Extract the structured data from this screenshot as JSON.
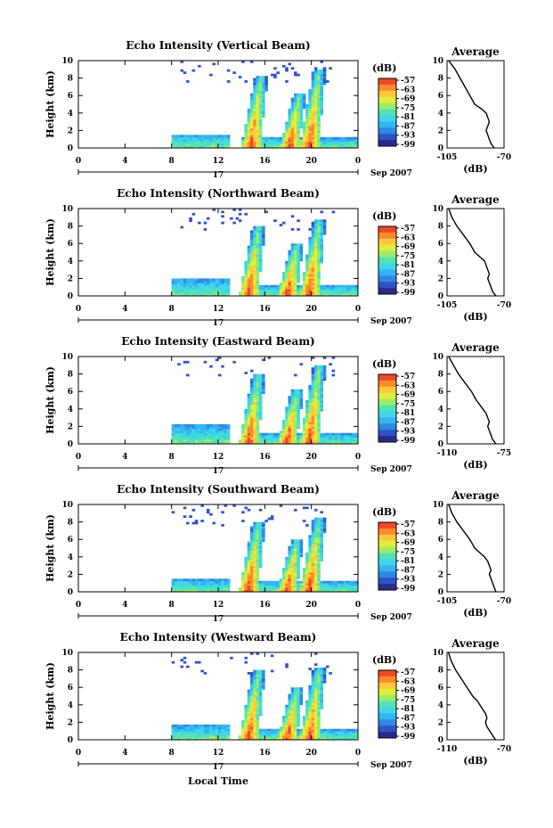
{
  "colors": {
    "colorbar": [
      "#2b2b8a",
      "#2f52c8",
      "#2f88e6",
      "#34b4f0",
      "#3ed7e6",
      "#52e3b4",
      "#9bec6a",
      "#e2ee3c",
      "#ffc83a",
      "#ff8a2a",
      "#f0482a"
    ]
  },
  "shared": {
    "ylabel": "Height (km)",
    "yticks": [
      "0",
      "2",
      "4",
      "6",
      "8",
      "10"
    ],
    "xticks": [
      "0",
      "4",
      "8",
      "12",
      "16",
      "20",
      "0"
    ],
    "date_day": "17",
    "date_month": "Sep 2007",
    "cbar_unit": "(dB)",
    "cbar_ticks": [
      "-57",
      "-63",
      "-69",
      "-75",
      "-81",
      "-87",
      "-93",
      "-99"
    ],
    "avg_title": "Average",
    "avg_unit": "(dB)",
    "avg_yticks": [
      "0",
      "2",
      "4",
      "6",
      "8",
      "10"
    ],
    "xlabel": "Local Time"
  },
  "chart_data": [
    {
      "type": "heatmap",
      "title": "Echo Intensity (Vertical Beam)",
      "x_range_hours": [
        0,
        24
      ],
      "y_range_km": [
        0,
        10
      ],
      "value_range_dB": [
        -99,
        -57
      ],
      "features": [
        {
          "kind": "low-layer",
          "start_h": 8,
          "end_h": 13,
          "top_km": 1.6
        },
        {
          "kind": "low-layer",
          "start_h": 14,
          "end_h": 24,
          "top_km": 1.2
        },
        {
          "kind": "convective-core",
          "center_h": 15.2,
          "top_km": 8.2
        },
        {
          "kind": "convective-core",
          "center_h": 18.5,
          "top_km": 6.2
        },
        {
          "kind": "convective-core",
          "center_h": 20.2,
          "top_km": 9.0
        }
      ],
      "average": {
        "xlim": [
          -105,
          -70
        ],
        "xticks": [
          "-105",
          "-70"
        ],
        "profile": [
          [
            -76,
            0
          ],
          [
            -78,
            0.5
          ],
          [
            -79,
            1
          ],
          [
            -80,
            1.5
          ],
          [
            -81,
            2
          ],
          [
            -80,
            2.5
          ],
          [
            -79,
            3
          ],
          [
            -80,
            3.5
          ],
          [
            -81,
            4
          ],
          [
            -84,
            4.5
          ],
          [
            -88,
            5
          ],
          [
            -91,
            6
          ],
          [
            -94,
            7
          ],
          [
            -97,
            8
          ],
          [
            -100,
            9
          ],
          [
            -104,
            10
          ]
        ]
      }
    },
    {
      "type": "heatmap",
      "title": "Echo Intensity (Northward Beam)",
      "x_range_hours": [
        0,
        24
      ],
      "y_range_km": [
        0,
        10
      ],
      "value_range_dB": [
        -99,
        -57
      ],
      "features": [
        {
          "kind": "low-layer",
          "start_h": 8,
          "end_h": 13,
          "top_km": 2.0
        },
        {
          "kind": "low-layer",
          "start_h": 14,
          "end_h": 24,
          "top_km": 1.3
        },
        {
          "kind": "convective-core",
          "center_h": 15.0,
          "top_km": 8.0
        },
        {
          "kind": "convective-core",
          "center_h": 18.3,
          "top_km": 6.0
        },
        {
          "kind": "convective-core",
          "center_h": 20.2,
          "top_km": 8.8
        }
      ],
      "average": {
        "xlim": [
          -105,
          -70
        ],
        "xticks": [
          "-105",
          "-70"
        ],
        "profile": [
          [
            -75,
            0
          ],
          [
            -77,
            0.5
          ],
          [
            -78,
            1
          ],
          [
            -79,
            1.5
          ],
          [
            -80,
            2
          ],
          [
            -79,
            2.5
          ],
          [
            -80,
            3
          ],
          [
            -81,
            3.5
          ],
          [
            -82,
            4
          ],
          [
            -85,
            4.5
          ],
          [
            -88,
            5
          ],
          [
            -91,
            6
          ],
          [
            -95,
            7
          ],
          [
            -99,
            8
          ],
          [
            -102,
            9
          ],
          [
            -104,
            10
          ]
        ]
      }
    },
    {
      "type": "heatmap",
      "title": "Echo Intensity (Eastward Beam)",
      "x_range_hours": [
        0,
        24
      ],
      "y_range_km": [
        0,
        10
      ],
      "value_range_dB": [
        -99,
        -57
      ],
      "features": [
        {
          "kind": "low-layer",
          "start_h": 8,
          "end_h": 13,
          "top_km": 2.2
        },
        {
          "kind": "low-layer",
          "start_h": 14,
          "end_h": 24,
          "top_km": 1.3
        },
        {
          "kind": "convective-core",
          "center_h": 15.0,
          "top_km": 8.0
        },
        {
          "kind": "convective-core",
          "center_h": 18.3,
          "top_km": 6.2
        },
        {
          "kind": "convective-core",
          "center_h": 20.2,
          "top_km": 9.0
        }
      ],
      "average": {
        "xlim": [
          -110,
          -75
        ],
        "xticks": [
          "-110",
          "-75"
        ],
        "profile": [
          [
            -80,
            0
          ],
          [
            -82,
            0.5
          ],
          [
            -83,
            1
          ],
          [
            -84,
            1.5
          ],
          [
            -85,
            2
          ],
          [
            -84,
            2.5
          ],
          [
            -85,
            3
          ],
          [
            -86,
            3.5
          ],
          [
            -88,
            4
          ],
          [
            -90,
            4.5
          ],
          [
            -92,
            5
          ],
          [
            -95,
            6
          ],
          [
            -99,
            7
          ],
          [
            -103,
            8
          ],
          [
            -106,
            9
          ],
          [
            -109,
            10
          ]
        ]
      }
    },
    {
      "type": "heatmap",
      "title": "Echo Intensity (Southward Beam)",
      "x_range_hours": [
        0,
        24
      ],
      "y_range_km": [
        0,
        10
      ],
      "value_range_dB": [
        -99,
        -57
      ],
      "features": [
        {
          "kind": "low-layer",
          "start_h": 8,
          "end_h": 13,
          "top_km": 1.5
        },
        {
          "kind": "low-layer",
          "start_h": 14,
          "end_h": 24,
          "top_km": 1.3
        },
        {
          "kind": "convective-core",
          "center_h": 15.0,
          "top_km": 8.0
        },
        {
          "kind": "convective-core",
          "center_h": 18.3,
          "top_km": 6.0
        },
        {
          "kind": "convective-core",
          "center_h": 20.2,
          "top_km": 8.5
        }
      ],
      "average": {
        "xlim": [
          -105,
          -70
        ],
        "xticks": [
          "-105",
          "-70"
        ],
        "profile": [
          [
            -75,
            0
          ],
          [
            -76,
            0.5
          ],
          [
            -77,
            1
          ],
          [
            -78,
            1.5
          ],
          [
            -79,
            2
          ],
          [
            -78,
            2.5
          ],
          [
            -79,
            3
          ],
          [
            -80,
            3.5
          ],
          [
            -82,
            4
          ],
          [
            -85,
            4.5
          ],
          [
            -88,
            5
          ],
          [
            -91,
            6
          ],
          [
            -95,
            7
          ],
          [
            -99,
            8
          ],
          [
            -102,
            9
          ],
          [
            -104,
            10
          ]
        ]
      }
    },
    {
      "type": "heatmap",
      "title": "Echo Intensity (Westward Beam)",
      "x_range_hours": [
        0,
        24
      ],
      "y_range_km": [
        0,
        10
      ],
      "value_range_dB": [
        -99,
        -57
      ],
      "features": [
        {
          "kind": "low-layer",
          "start_h": 8,
          "end_h": 13,
          "top_km": 1.8
        },
        {
          "kind": "low-layer",
          "start_h": 14,
          "end_h": 24,
          "top_km": 1.3
        },
        {
          "kind": "convective-core",
          "center_h": 15.0,
          "top_km": 8.0
        },
        {
          "kind": "convective-core",
          "center_h": 18.3,
          "top_km": 6.0
        },
        {
          "kind": "convective-core",
          "center_h": 20.2,
          "top_km": 8.2
        }
      ],
      "average": {
        "xlim": [
          -110,
          -70
        ],
        "xticks": [
          "-110",
          "-70"
        ],
        "profile": [
          [
            -76,
            0
          ],
          [
            -78,
            0.5
          ],
          [
            -80,
            1
          ],
          [
            -82,
            1.5
          ],
          [
            -83,
            2
          ],
          [
            -82,
            2.5
          ],
          [
            -83,
            3
          ],
          [
            -85,
            3.5
          ],
          [
            -87,
            4
          ],
          [
            -89,
            4.5
          ],
          [
            -92,
            5
          ],
          [
            -96,
            6
          ],
          [
            -100,
            7
          ],
          [
            -104,
            8
          ],
          [
            -107,
            9
          ],
          [
            -109,
            10
          ]
        ]
      }
    }
  ]
}
